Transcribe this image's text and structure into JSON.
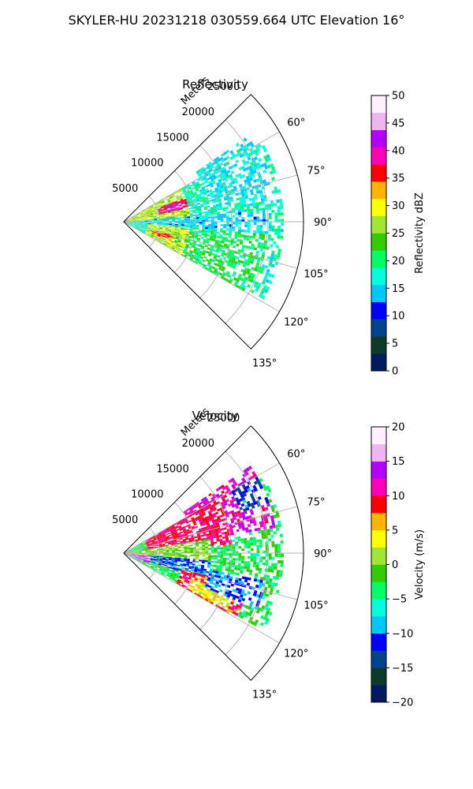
{
  "figure": {
    "title": "SKYLER-HU  20231218  030559.664 UTC Elevation 16°"
  },
  "chart_data": [
    {
      "type": "heatmap",
      "projection": "polar-sector",
      "title": "Reflectivity",
      "radial_label": "Meters",
      "radial_range": [
        0,
        25000
      ],
      "radial_ticks": [
        5000,
        10000,
        15000,
        20000,
        25000
      ],
      "radial_tick_labels": [
        "5000",
        "10000",
        "15000",
        "20000",
        "25000"
      ],
      "angle_range_deg": [
        45,
        135
      ],
      "angle_ticks_deg": [
        60,
        75,
        90,
        105,
        120,
        135
      ],
      "angle_tick_labels": [
        "60°",
        "75°",
        "90°",
        "105°",
        "120°",
        "135°"
      ],
      "grid": true,
      "colorbar": {
        "label": "Reflectivity dBZ",
        "range": [
          0,
          50
        ],
        "ticks": [
          0,
          5,
          10,
          15,
          20,
          25,
          30,
          35,
          40,
          45,
          50
        ],
        "tick_labels": [
          "0",
          "5",
          "10",
          "15",
          "20",
          "25",
          "30",
          "35",
          "40",
          "45",
          "50"
        ],
        "colors": [
          "#001b5e",
          "#0d3b2b",
          "#00458c",
          "#0000ff",
          "#00c8ff",
          "#00ffdc",
          "#00ff64",
          "#32cd00",
          "#a0e632",
          "#ffff00",
          "#ffb400",
          "#ff0000",
          "#ff00b4",
          "#b400ff",
          "#f0b4f0",
          "#fff0ff"
        ]
      },
      "echo_regions": [
        {
          "azimuth": [
            60,
            118
          ],
          "range_m": [
            0,
            22000
          ],
          "level": 18
        },
        {
          "azimuth": [
            55,
            80
          ],
          "range_m": [
            12000,
            21000
          ],
          "level": 16
        },
        {
          "azimuth": [
            95,
            120
          ],
          "range_m": [
            8000,
            20000
          ],
          "level": 21
        },
        {
          "azimuth": [
            60,
            85
          ],
          "range_m": [
            0,
            9000
          ],
          "level": 27
        },
        {
          "azimuth": [
            95,
            120
          ],
          "range_m": [
            3000,
            9000
          ],
          "level": 27
        },
        {
          "azimuth": [
            68,
            78
          ],
          "range_m": [
            5000,
            9000
          ],
          "level": 38
        },
        {
          "azimuth": [
            72,
            76
          ],
          "range_m": [
            6000,
            8000
          ],
          "level": 42
        },
        {
          "azimuth": [
            105,
            112
          ],
          "range_m": [
            4000,
            7000
          ],
          "level": 34
        },
        {
          "azimuth": [
            85,
            95
          ],
          "range_m": [
            0,
            20000
          ],
          "level": 15
        }
      ]
    },
    {
      "type": "heatmap",
      "projection": "polar-sector",
      "title": "Velocity",
      "radial_label": "Meters",
      "radial_range": [
        0,
        25000
      ],
      "radial_ticks": [
        5000,
        10000,
        15000,
        20000,
        25000
      ],
      "radial_tick_labels": [
        "5000",
        "10000",
        "15000",
        "20000",
        "25000"
      ],
      "angle_range_deg": [
        45,
        135
      ],
      "angle_ticks_deg": [
        60,
        75,
        90,
        105,
        120,
        135
      ],
      "angle_tick_labels": [
        "60°",
        "75°",
        "90°",
        "105°",
        "120°",
        "135°"
      ],
      "grid": true,
      "colorbar": {
        "label": "Velocity (m/s)",
        "range": [
          -20,
          20
        ],
        "ticks": [
          -20,
          -15,
          -10,
          -5,
          0,
          5,
          10,
          15,
          20
        ],
        "tick_labels": [
          "−20",
          "−15",
          "−10",
          "−5",
          "0",
          "5",
          "10",
          "15",
          "20"
        ],
        "colors": [
          "#001b5e",
          "#0d3b2b",
          "#00458c",
          "#0000ff",
          "#00c8ff",
          "#00ffdc",
          "#00ff64",
          "#32cd00",
          "#a0e632",
          "#ffff00",
          "#ffb400",
          "#ff0000",
          "#ff00b4",
          "#b400ff",
          "#f0b4f0",
          "#fff0ff"
        ]
      },
      "echo_regions": [
        {
          "azimuth": [
            60,
            118
          ],
          "range_m": [
            0,
            22000
          ],
          "level": -3
        },
        {
          "azimuth": [
            55,
            80
          ],
          "range_m": [
            10000,
            21000
          ],
          "level": 12
        },
        {
          "azimuth": [
            60,
            85
          ],
          "range_m": [
            3000,
            15000
          ],
          "level": 10
        },
        {
          "azimuth": [
            80,
            95
          ],
          "range_m": [
            0,
            12000
          ],
          "level": 0
        },
        {
          "azimuth": [
            95,
            108
          ],
          "range_m": [
            2000,
            12000
          ],
          "level": -11
        },
        {
          "azimuth": [
            105,
            120
          ],
          "range_m": [
            8000,
            18000
          ],
          "level": 9
        },
        {
          "azimuth": [
            110,
            118
          ],
          "range_m": [
            10000,
            16000
          ],
          "level": 4
        },
        {
          "azimuth": [
            100,
            112
          ],
          "range_m": [
            12000,
            20000
          ],
          "level": -10
        },
        {
          "azimuth": [
            95,
            112
          ],
          "range_m": [
            0,
            3500
          ],
          "level": 15
        },
        {
          "azimuth": [
            60,
            70
          ],
          "range_m": [
            17000,
            21000
          ],
          "level": -12
        }
      ]
    }
  ]
}
